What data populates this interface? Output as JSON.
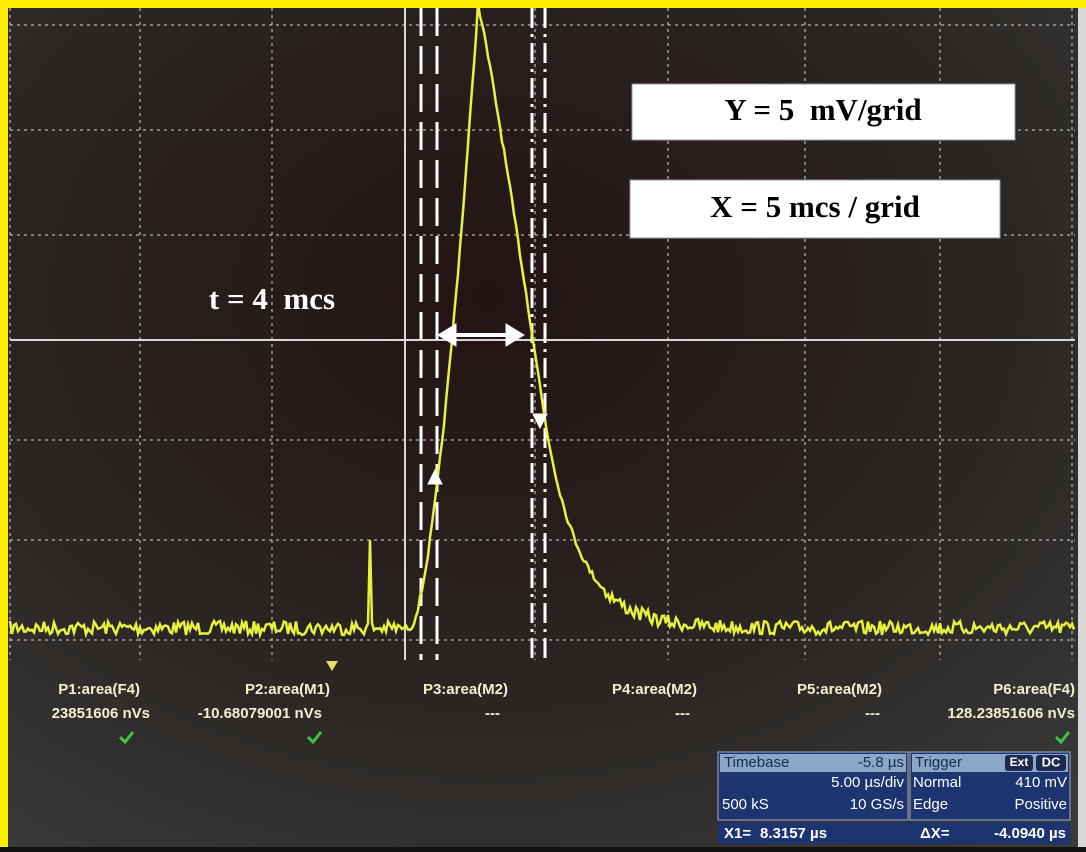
{
  "annotations": {
    "y_scale": "Y = 5  mV/grid",
    "x_scale": "X = 5 mcs / grid",
    "pulse_width": "t = 4  mcs"
  },
  "measurements": [
    {
      "label": "P1:area(F4)",
      "value": "23851606 nVs"
    },
    {
      "label": "P2:area(M1)",
      "value": "-10.68079001 nVs"
    },
    {
      "label": "P3:area(M2)",
      "value": "---"
    },
    {
      "label": "P4:area(M2)",
      "value": "---"
    },
    {
      "label": "P5:area(M2)",
      "value": "---"
    },
    {
      "label": "P6:area(F4)",
      "value": "128.23851606 nVs"
    }
  ],
  "timebase": {
    "title": "Timebase",
    "delay": "-5.8 µs",
    "scale": "5.00 µs/div",
    "memory": "500 kS",
    "sample_rate": "10 GS/s"
  },
  "trigger": {
    "title": "Trigger",
    "source": "Ext",
    "coupling": "DC",
    "mode": "Normal",
    "level": "410 mV",
    "type": "Edge",
    "slope": "Positive"
  },
  "cursor": {
    "x1_label": "X1=",
    "x1": "8.3157 µs",
    "dx_label": "ΔX=",
    "dx": "-4.0940 µs"
  }
}
